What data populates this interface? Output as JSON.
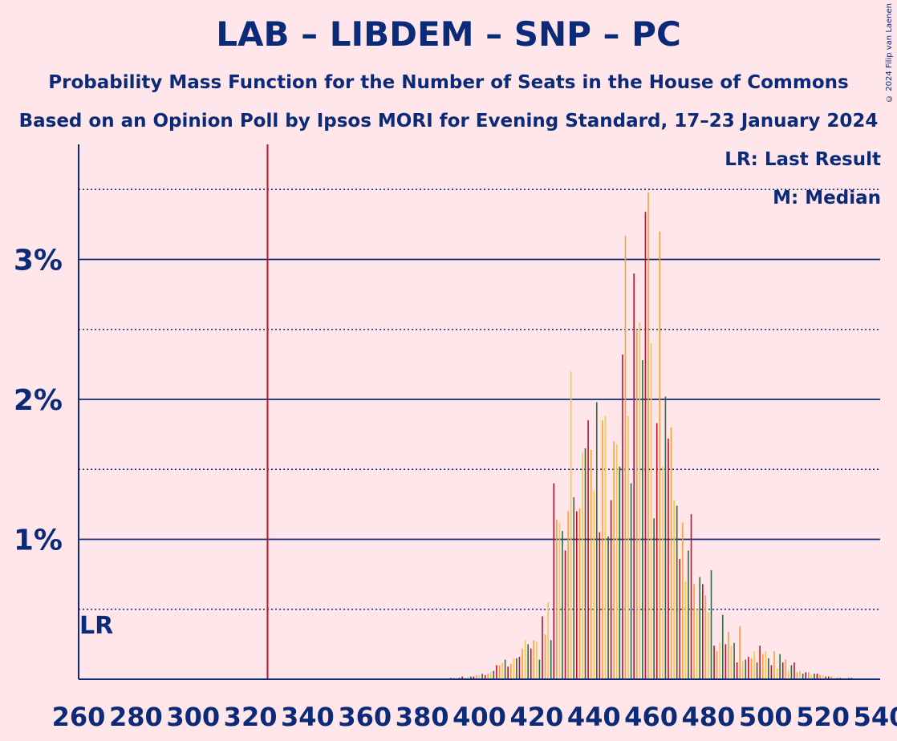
{
  "header": {
    "title": "LAB – LIBDEM – SNP – PC",
    "subtitle": "Probability Mass Function for the Number of Seats in the House of Commons",
    "source": "Based on an Opinion Poll by Ipsos MORI for Evening Standard, 17–23 January 2024",
    "copyright": "© 2024 Filip van Laenen"
  },
  "legend": {
    "last_result": "LR: Last Result",
    "median": "M: Median"
  },
  "colors": {
    "background": "#ffe6ea",
    "text": "#0b2a78",
    "last_result_line": "#c0102a",
    "bar_red": "#c0102a",
    "bar_orange": "#f5a03a",
    "bar_yellow": "#f2c84b",
    "bar_green": "#2e6b3e"
  },
  "chart_data": {
    "type": "bar",
    "xlabel": "",
    "ylabel": "",
    "xlim": [
      260,
      540
    ],
    "ylim": [
      0,
      3.8
    ],
    "x_ticks": [
      260,
      280,
      300,
      320,
      340,
      360,
      380,
      400,
      420,
      440,
      460,
      480,
      500,
      520,
      540
    ],
    "y_ticks_major": [
      {
        "value": 1,
        "label": "1%"
      },
      {
        "value": 2,
        "label": "2%"
      },
      {
        "value": 3,
        "label": "3%"
      }
    ],
    "y_ticks_minor": [
      0.5,
      1.5,
      2.5,
      3.5
    ],
    "last_result": {
      "x": 326,
      "label": "LR"
    },
    "series": [
      {
        "x": [
          390,
          391,
          392,
          393,
          394,
          395,
          396,
          397,
          398,
          399,
          400,
          401,
          402,
          403,
          404,
          405,
          406,
          407,
          408,
          409,
          410,
          411,
          412,
          413,
          414,
          415,
          416,
          417,
          418,
          419,
          420,
          421,
          422,
          423,
          424,
          425,
          426,
          427,
          428,
          429,
          430,
          431,
          432,
          433,
          434,
          435,
          436,
          437,
          438,
          439,
          440,
          441,
          442,
          443,
          444,
          445,
          446,
          447,
          448,
          449,
          450,
          451,
          452,
          453,
          454,
          455,
          456,
          457,
          458,
          459,
          460,
          461,
          462,
          463,
          464,
          465,
          466,
          467,
          468,
          469,
          470,
          471,
          472,
          473,
          474,
          475,
          476,
          477,
          478,
          479,
          480,
          481,
          482,
          483,
          484,
          485,
          486,
          487,
          488,
          489,
          490,
          491,
          492,
          493,
          494,
          495,
          496,
          497,
          498,
          499,
          500,
          501,
          502,
          503,
          504,
          505,
          506,
          507,
          508,
          509,
          510,
          511,
          512,
          513,
          514,
          515,
          516,
          517,
          518,
          519,
          520,
          521,
          522,
          523,
          524,
          525,
          526,
          527,
          528,
          529,
          530
        ],
        "values": [
          0.01,
          0.01,
          0.01,
          0.01,
          0.02,
          0.01,
          0.02,
          0.02,
          0.02,
          0.03,
          0.03,
          0.04,
          0.03,
          0.04,
          0.05,
          0.06,
          0.1,
          0.1,
          0.12,
          0.14,
          0.09,
          0.11,
          0.15,
          0.15,
          0.16,
          0.22,
          0.28,
          0.25,
          0.22,
          0.28,
          0.27,
          0.14,
          0.45,
          0.32,
          0.55,
          0.28,
          1.4,
          1.14,
          1.12,
          1.06,
          0.92,
          1.2,
          2.2,
          1.3,
          1.2,
          1.22,
          1.62,
          1.65,
          1.85,
          1.64,
          1.35,
          1.98,
          1.05,
          1.85,
          1.88,
          1.02,
          1.28,
          1.7,
          1.68,
          1.52,
          2.32,
          3.17,
          1.88,
          1.4,
          2.9,
          2.5,
          2.55,
          2.28,
          3.34,
          3.48,
          2.4,
          1.15,
          1.83,
          3.2,
          1.52,
          2.02,
          1.72,
          1.8,
          1.28,
          1.24,
          0.86,
          1.12,
          0.7,
          0.92,
          1.18,
          0.68,
          0.5,
          0.73,
          0.68,
          0.6,
          0.48,
          0.78,
          0.24,
          0.2,
          0.26,
          0.46,
          0.25,
          0.34,
          0.24,
          0.26,
          0.12,
          0.38,
          0.13,
          0.14,
          0.16,
          0.15,
          0.2,
          0.12,
          0.24,
          0.18,
          0.2,
          0.15,
          0.1,
          0.2,
          0.08,
          0.18,
          0.12,
          0.14,
          0.06,
          0.1,
          0.12,
          0.05,
          0.06,
          0.04,
          0.05,
          0.05,
          0.03,
          0.04,
          0.04,
          0.03,
          0.03,
          0.02,
          0.02,
          0.02,
          0.01,
          0.01,
          0.01,
          0.01,
          0.01,
          0.01,
          0.01
        ]
      }
    ]
  }
}
